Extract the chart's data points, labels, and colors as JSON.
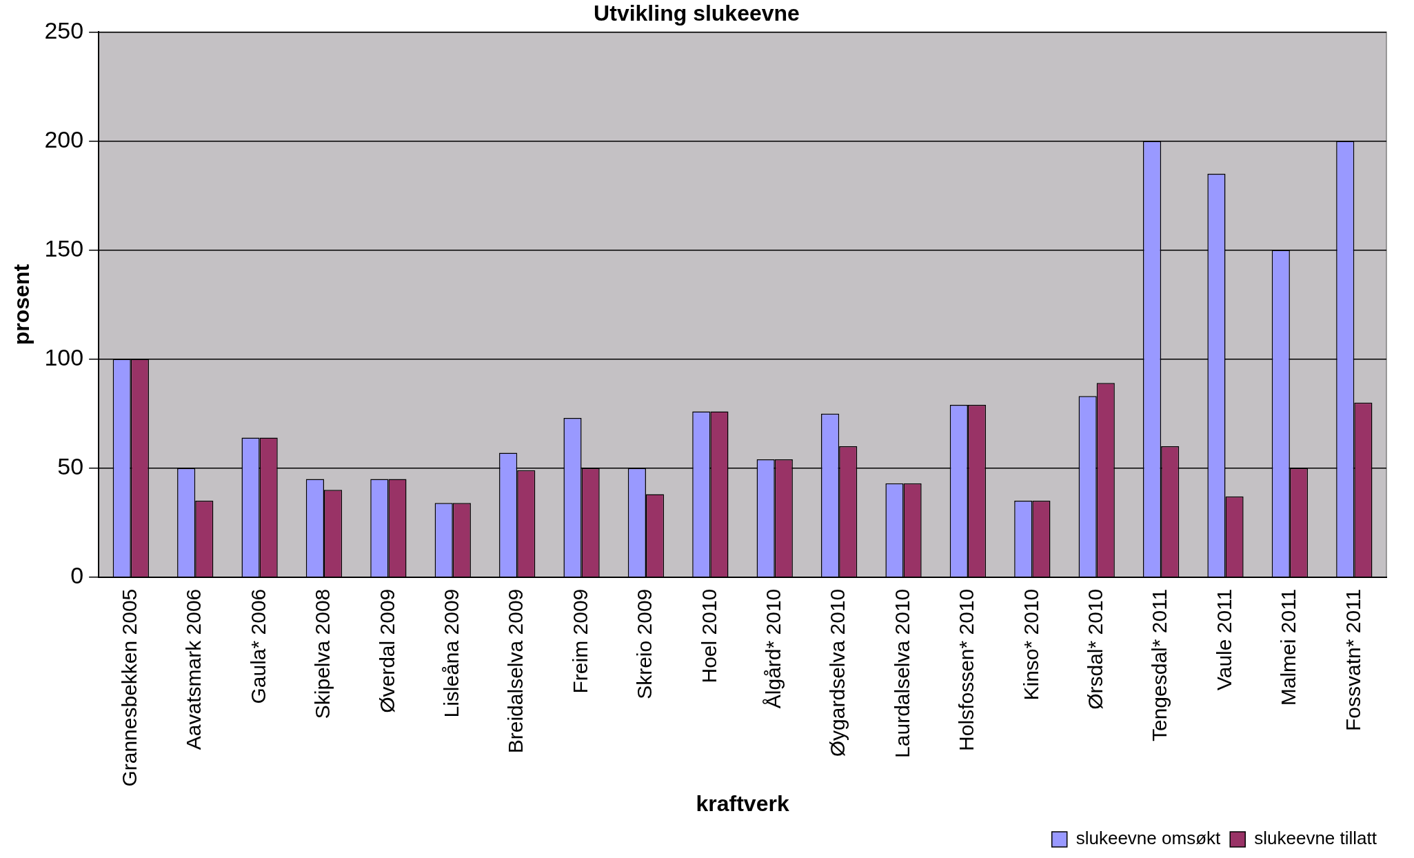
{
  "chart_data": {
    "type": "bar",
    "title": "Utvikling slukeevne",
    "xlabel": "kraftverk",
    "ylabel": "prosent",
    "categories": [
      "Grannesbekken 2005",
      "Aavatsmark 2006",
      "Gaula* 2006",
      "Skipelva 2008",
      "Øverdal 2009",
      "Lisleåna 2009",
      "Breidalselva 2009",
      "Freim 2009",
      "Skreio 2009",
      "Hoel 2010",
      "Ålgård* 2010",
      "Øygardselva 2010",
      "Laurdalselva 2010",
      "Holsfossen* 2010",
      "Kinso* 2010",
      "Ørsdal* 2010",
      "Tengesdal* 2011",
      "Vaule 2011",
      "Malmei 2011",
      "Fossvatn* 2011"
    ],
    "series": [
      {
        "name": "slukeevne omsøkt",
        "color": "#9999ff",
        "values": [
          100,
          50,
          64,
          45,
          45,
          34,
          57,
          73,
          50,
          76,
          54,
          75,
          43,
          79,
          35,
          83,
          200,
          185,
          150,
          200
        ]
      },
      {
        "name": "slukeevne tillatt",
        "color": "#993366",
        "values": [
          100,
          35,
          64,
          40,
          45,
          34,
          49,
          50,
          38,
          76,
          54,
          60,
          43,
          79,
          35,
          89,
          60,
          37,
          50,
          80
        ]
      }
    ],
    "ylim": [
      0,
      250
    ],
    "yticks": [
      0,
      50,
      100,
      150,
      200,
      250
    ],
    "grid": "y",
    "legend": "bottom right"
  }
}
